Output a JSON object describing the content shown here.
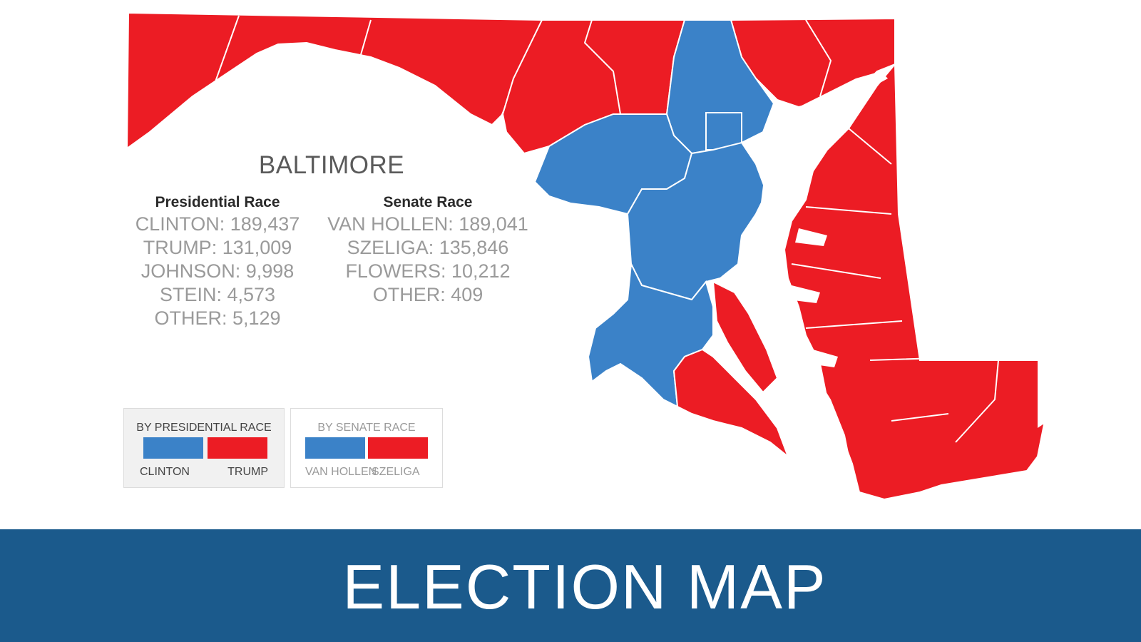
{
  "colors": {
    "clinton_blue": "#3b82c8",
    "trump_red": "#ec1c24",
    "banner_blue": "#1b5a8c"
  },
  "map": {
    "selected_region": "BALTIMORE",
    "democrat_counties": [
      "baltimore-county",
      "baltimore-city",
      "howard",
      "anne-arundel",
      "montgomery",
      "prince-georges"
    ],
    "republican_counties": [
      "garrett",
      "allegany",
      "washington",
      "frederick",
      "carroll",
      "harford",
      "cecil",
      "kent",
      "queen-annes",
      "talbot",
      "caroline",
      "dorchester",
      "wicomico",
      "worcester",
      "somerset",
      "charles",
      "calvert",
      "st-marys"
    ]
  },
  "results": {
    "presidential": {
      "heading": "Presidential Race",
      "lines": [
        "CLINTON: 189,437",
        "TRUMP: 131,009",
        "JOHNSON: 9,998",
        "STEIN: 4,573",
        "OTHER: 5,129"
      ]
    },
    "senate": {
      "heading": "Senate Race",
      "lines": [
        "VAN HOLLEN: 189,041",
        "SZELIGA: 135,846",
        "FLOWERS: 10,212",
        "OTHER: 409"
      ]
    }
  },
  "legend": {
    "presidential": {
      "title": "BY PRESIDENTIAL RACE",
      "left_label": "CLINTON",
      "right_label": "TRUMP"
    },
    "senate": {
      "title": "BY SENATE RACE",
      "left_label": "VAN HOLLEN",
      "right_label": "SZELIGA"
    }
  },
  "banner": {
    "title": "ELECTION MAP"
  }
}
